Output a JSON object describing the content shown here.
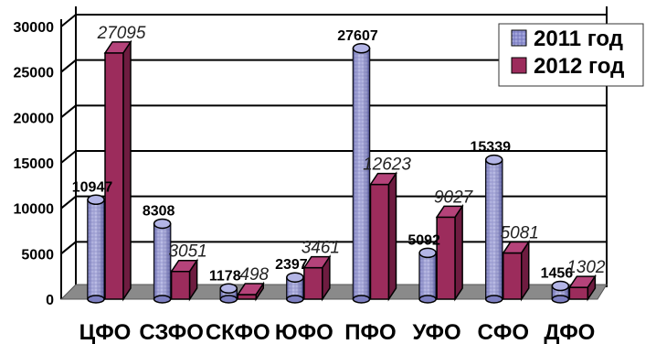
{
  "chart_data": {
    "type": "bar",
    "categories": [
      "ЦФО",
      "СЗФО",
      "СКФО",
      "ЮФО",
      "ПФО",
      "УФО",
      "СФО",
      "ДФО"
    ],
    "series": [
      {
        "name": "2011 год",
        "values": [
          10947,
          8308,
          1178,
          2397,
          27607,
          5092,
          15339,
          1456
        ],
        "color": "#8d8fcf"
      },
      {
        "name": "2012 год",
        "values": [
          27095,
          3051,
          498,
          3461,
          12623,
          9027,
          5081,
          1302
        ],
        "color": "#9c2c5c"
      }
    ],
    "yticks": [
      "0",
      "5000",
      "10000",
      "15000",
      "20000",
      "25000",
      "30000"
    ],
    "ylim": [
      0,
      30000
    ],
    "grid": true,
    "legend": "top-right",
    "three_d": true
  }
}
